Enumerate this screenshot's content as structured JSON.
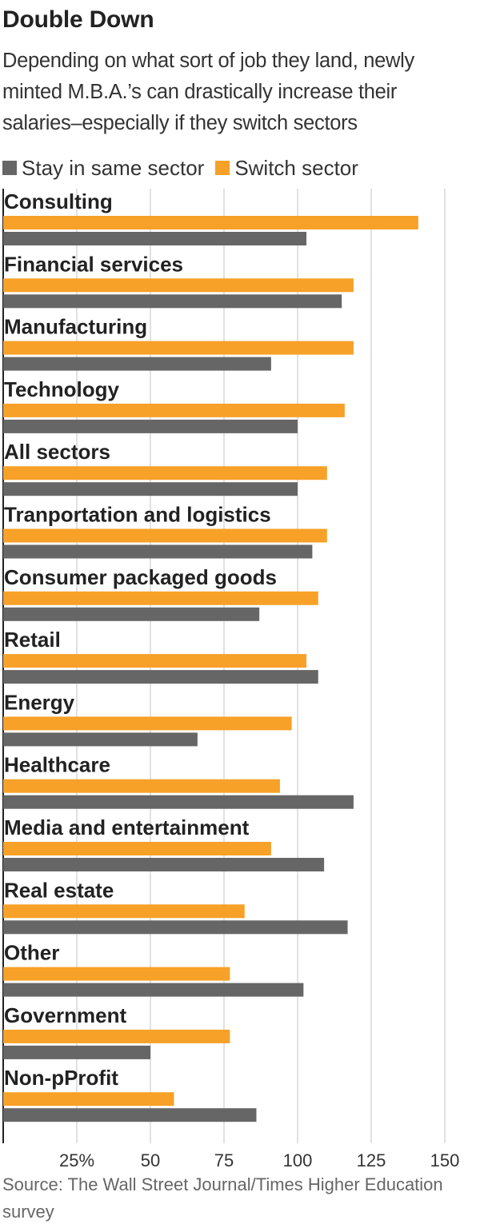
{
  "title": "Double Down",
  "subtitle": "Depending on what sort of job they land, newly minted M.B.A.’s can drastically increase their salaries–especially if they switch sectors",
  "source": "Source: The Wall Street Journal/Times Higher Education survey",
  "colors": {
    "stay": "#666666",
    "switch": "#f7a128",
    "grid": "#d7d7d7",
    "axis": "#222222"
  },
  "chart_data": {
    "type": "bar",
    "orientation": "horizontal",
    "title": "Double Down",
    "xlabel": "",
    "ylabel": "",
    "xlim": [
      0,
      150
    ],
    "ticks": [
      25,
      50,
      75,
      100,
      125,
      150
    ],
    "tick_labels": [
      "25%",
      "50",
      "75",
      "100",
      "125",
      "150"
    ],
    "legend_position": "top-left",
    "categories": [
      "Consulting",
      "Financial services",
      "Manufacturing",
      "Technology",
      "All sectors",
      "Tranportation and logistics",
      "Consumer packaged goods",
      "Retail",
      "Energy",
      "Healthcare",
      "Media and entertainment",
      "Real estate",
      "Other",
      "Government",
      "Non-pProfit"
    ],
    "series": [
      {
        "name": "Stay in same sector",
        "values": [
          103,
          115,
          91,
          100,
          100,
          105,
          87,
          107,
          66,
          119,
          109,
          117,
          102,
          50,
          86
        ]
      },
      {
        "name": "Switch sector",
        "values": [
          141,
          119,
          119,
          116,
          110,
          110,
          107,
          103,
          98,
          94,
          91,
          82,
          77,
          77,
          58
        ]
      }
    ]
  }
}
